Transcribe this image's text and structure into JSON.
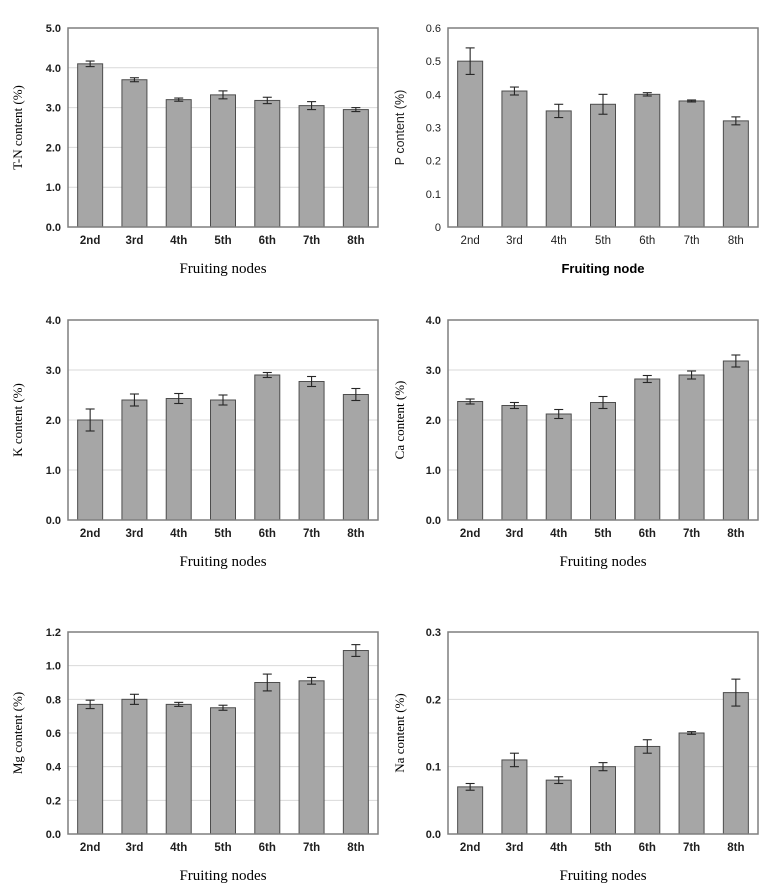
{
  "styles": {
    "bar_fill": "#a6a6a6",
    "bar_stroke": "#4d4d4d",
    "grid_color": "#d9d9d9",
    "frame_color": "#7f7f7f",
    "error_color": "#262626",
    "text_color": "#1f1f1f"
  },
  "chart_data": [
    {
      "id": "tn-content",
      "type": "bar",
      "ylabel": "T-N content (%)",
      "xlabel": "Fruiting nodes",
      "categories": [
        "2nd",
        "3rd",
        "4th",
        "5th",
        "6th",
        "7th",
        "8th"
      ],
      "values": [
        4.1,
        3.7,
        3.2,
        3.32,
        3.18,
        3.05,
        2.95
      ],
      "errors": [
        0.07,
        0.05,
        0.04,
        0.1,
        0.08,
        0.1,
        0.05
      ],
      "ylim": [
        0,
        5.0
      ],
      "ytick_step": 1.0,
      "ytick_decimals": 1,
      "grid": true,
      "serif_labels": true
    },
    {
      "id": "p-content",
      "type": "bar",
      "ylabel": "P content (%)",
      "xlabel": "Fruiting node",
      "categories": [
        "2nd",
        "3rd",
        "4th",
        "5th",
        "6th",
        "7th",
        "8th"
      ],
      "values": [
        0.5,
        0.41,
        0.35,
        0.37,
        0.4,
        0.38,
        0.32
      ],
      "errors": [
        0.04,
        0.012,
        0.02,
        0.03,
        0.005,
        0.003,
        0.012
      ],
      "ylim": [
        0,
        0.6
      ],
      "ytick_step": 0.1,
      "ytick_decimals": 1,
      "zero_tick_label": "0",
      "grid": false,
      "serif_labels": false
    },
    {
      "id": "k-content",
      "type": "bar",
      "ylabel": "K content (%)",
      "xlabel": "Fruiting nodes",
      "categories": [
        "2nd",
        "3rd",
        "4th",
        "5th",
        "6th",
        "7th",
        "8th"
      ],
      "values": [
        2.0,
        2.4,
        2.43,
        2.4,
        2.9,
        2.77,
        2.51
      ],
      "errors": [
        0.22,
        0.12,
        0.1,
        0.1,
        0.05,
        0.1,
        0.12
      ],
      "ylim": [
        0,
        4.0
      ],
      "ytick_step": 1.0,
      "ytick_decimals": 1,
      "grid": true,
      "serif_labels": true
    },
    {
      "id": "ca-content",
      "type": "bar",
      "ylabel": "Ca content (%)",
      "xlabel": "Fruiting nodes",
      "categories": [
        "2nd",
        "3rd",
        "4th",
        "5th",
        "6th",
        "7th",
        "8th"
      ],
      "values": [
        2.37,
        2.29,
        2.12,
        2.35,
        2.82,
        2.9,
        3.18
      ],
      "errors": [
        0.05,
        0.06,
        0.09,
        0.12,
        0.07,
        0.08,
        0.12
      ],
      "ylim": [
        0,
        4.0
      ],
      "ytick_step": 1.0,
      "ytick_decimals": 1,
      "grid": true,
      "serif_labels": true
    },
    {
      "id": "mg-content",
      "type": "bar",
      "ylabel": "Mg content (%)",
      "xlabel": "Fruiting nodes",
      "categories": [
        "2nd",
        "3rd",
        "4th",
        "5th",
        "6th",
        "7th",
        "8th"
      ],
      "values": [
        0.77,
        0.8,
        0.77,
        0.75,
        0.9,
        0.91,
        1.09
      ],
      "errors": [
        0.025,
        0.03,
        0.012,
        0.015,
        0.05,
        0.02,
        0.035
      ],
      "ylim": [
        0,
        1.2
      ],
      "ytick_step": 0.2,
      "ytick_decimals": 1,
      "grid": true,
      "serif_labels": true
    },
    {
      "id": "na-content",
      "type": "bar",
      "ylabel": "Na content (%)",
      "xlabel": "Fruiting nodes",
      "categories": [
        "2nd",
        "3rd",
        "4th",
        "5th",
        "6th",
        "7th",
        "8th"
      ],
      "values": [
        0.07,
        0.11,
        0.08,
        0.1,
        0.13,
        0.15,
        0.21
      ],
      "errors": [
        0.005,
        0.01,
        0.005,
        0.006,
        0.01,
        0.002,
        0.02
      ],
      "ylim": [
        0,
        0.3
      ],
      "ytick_step": 0.1,
      "ytick_decimals": 1,
      "grid": true,
      "serif_labels": true
    }
  ]
}
